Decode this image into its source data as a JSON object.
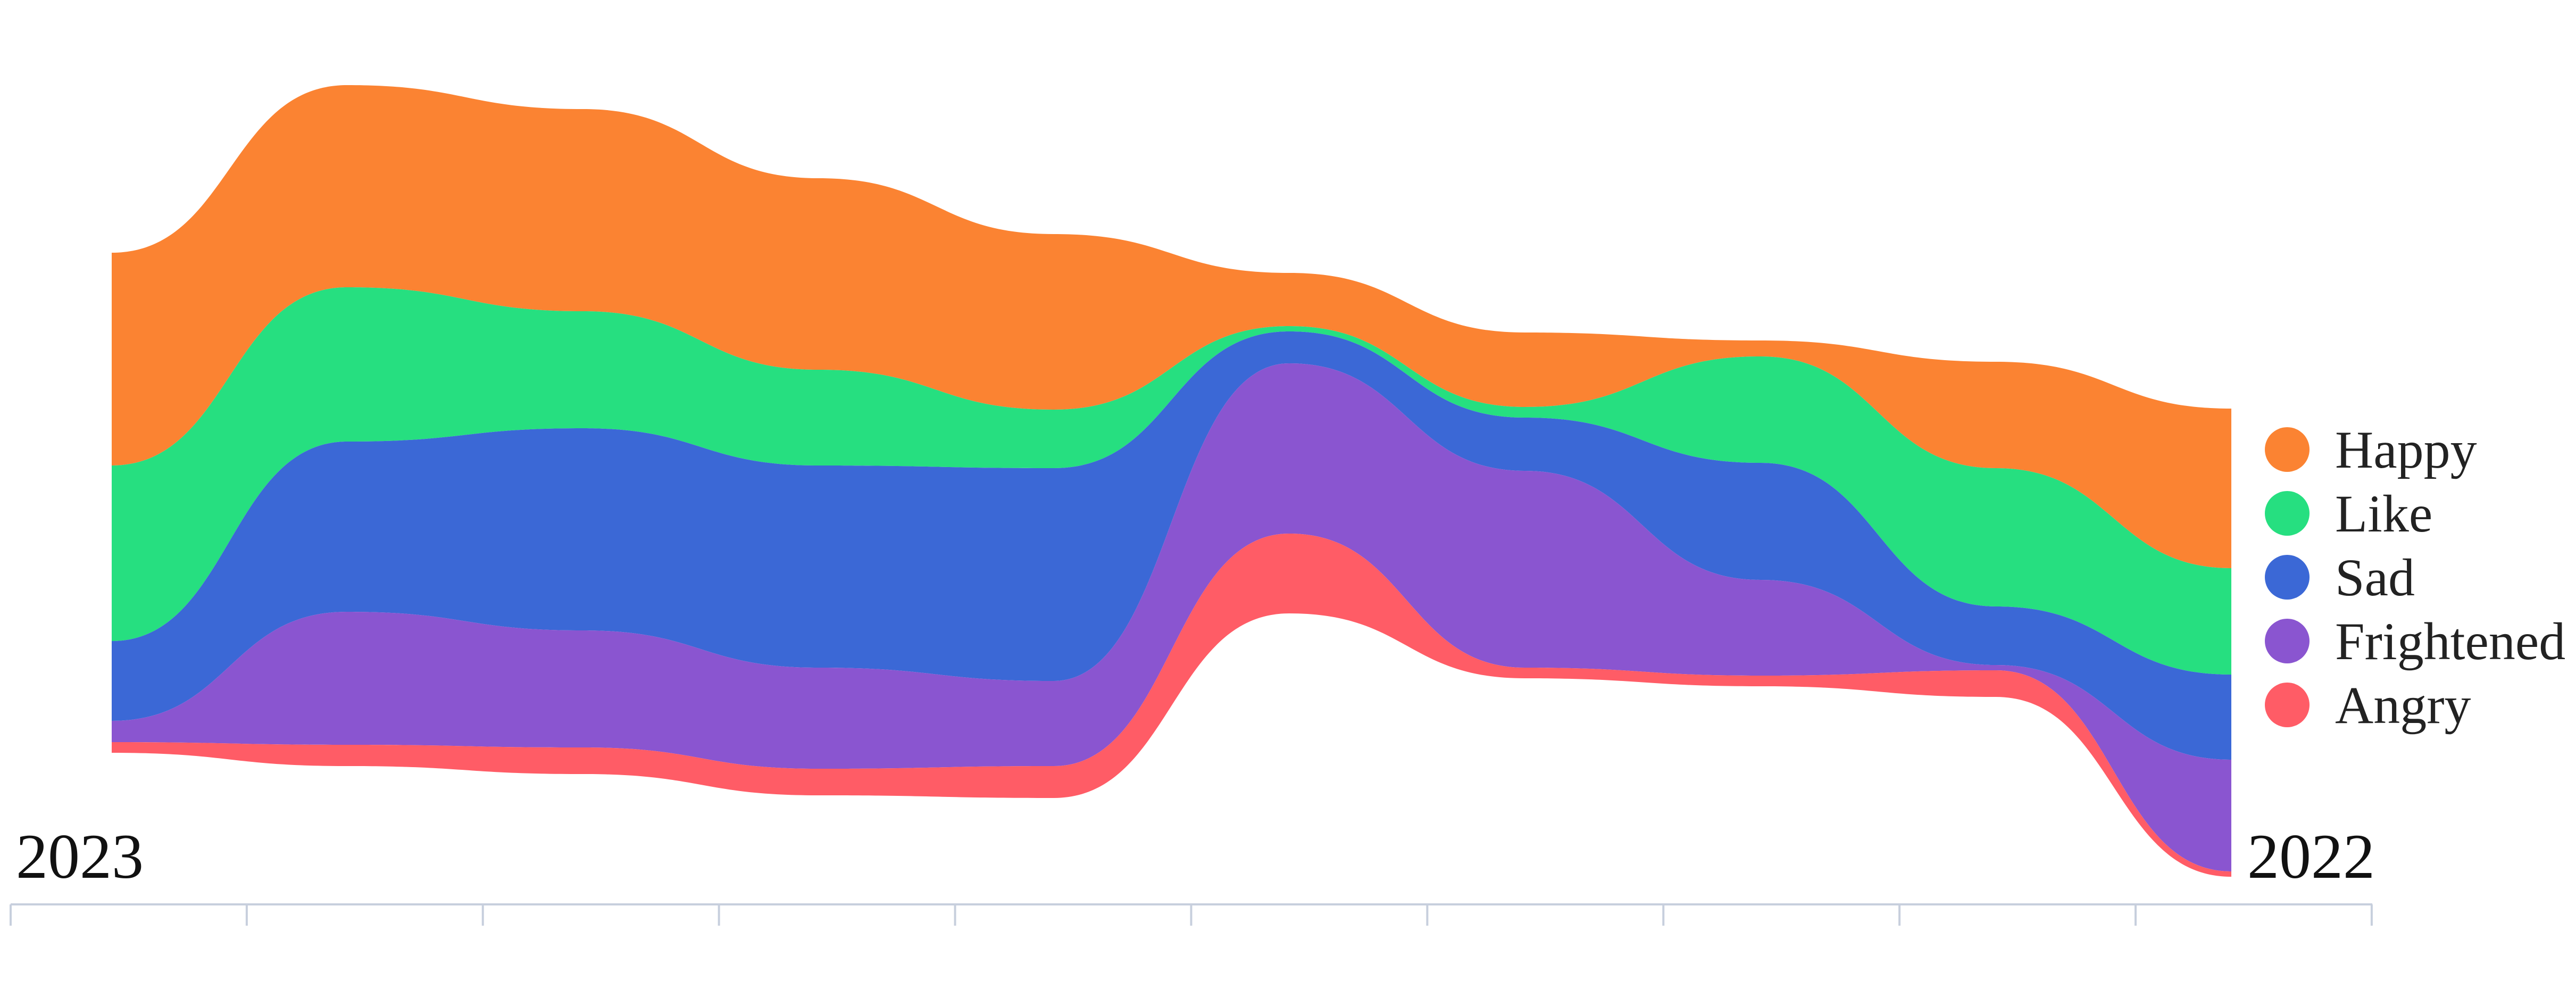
{
  "chart_data": {
    "type": "area",
    "subtype": "streamgraph",
    "title": "",
    "xlabel": "",
    "ylabel": "",
    "x_start_label": "2023",
    "x_end_label": "2022",
    "x": [
      0,
      1,
      2,
      3,
      4,
      5,
      6,
      7,
      8,
      9
    ],
    "legend_position": "right",
    "grid": false,
    "series": [
      {
        "name": "Happy",
        "color": "#fb8332",
        "values": [
          40,
          38,
          38,
          36,
          33,
          10,
          14,
          3,
          20,
          30
        ]
      },
      {
        "name": "Like",
        "color": "#26df80",
        "values": [
          33,
          29,
          22,
          18,
          11,
          1,
          2,
          20,
          26,
          20
        ]
      },
      {
        "name": "Sad",
        "color": "#3b68d6",
        "values": [
          15,
          32,
          38,
          38,
          40,
          6,
          10,
          22,
          11,
          16
        ]
      },
      {
        "name": "Frightened",
        "color": "#8a55d0",
        "values": [
          4,
          25,
          22,
          19,
          16,
          32,
          37,
          18,
          1,
          21
        ]
      },
      {
        "name": "Angry",
        "color": "#ff5c66",
        "values": [
          2,
          4,
          5,
          5,
          6,
          15,
          2,
          2,
          5,
          1
        ]
      }
    ]
  }
}
